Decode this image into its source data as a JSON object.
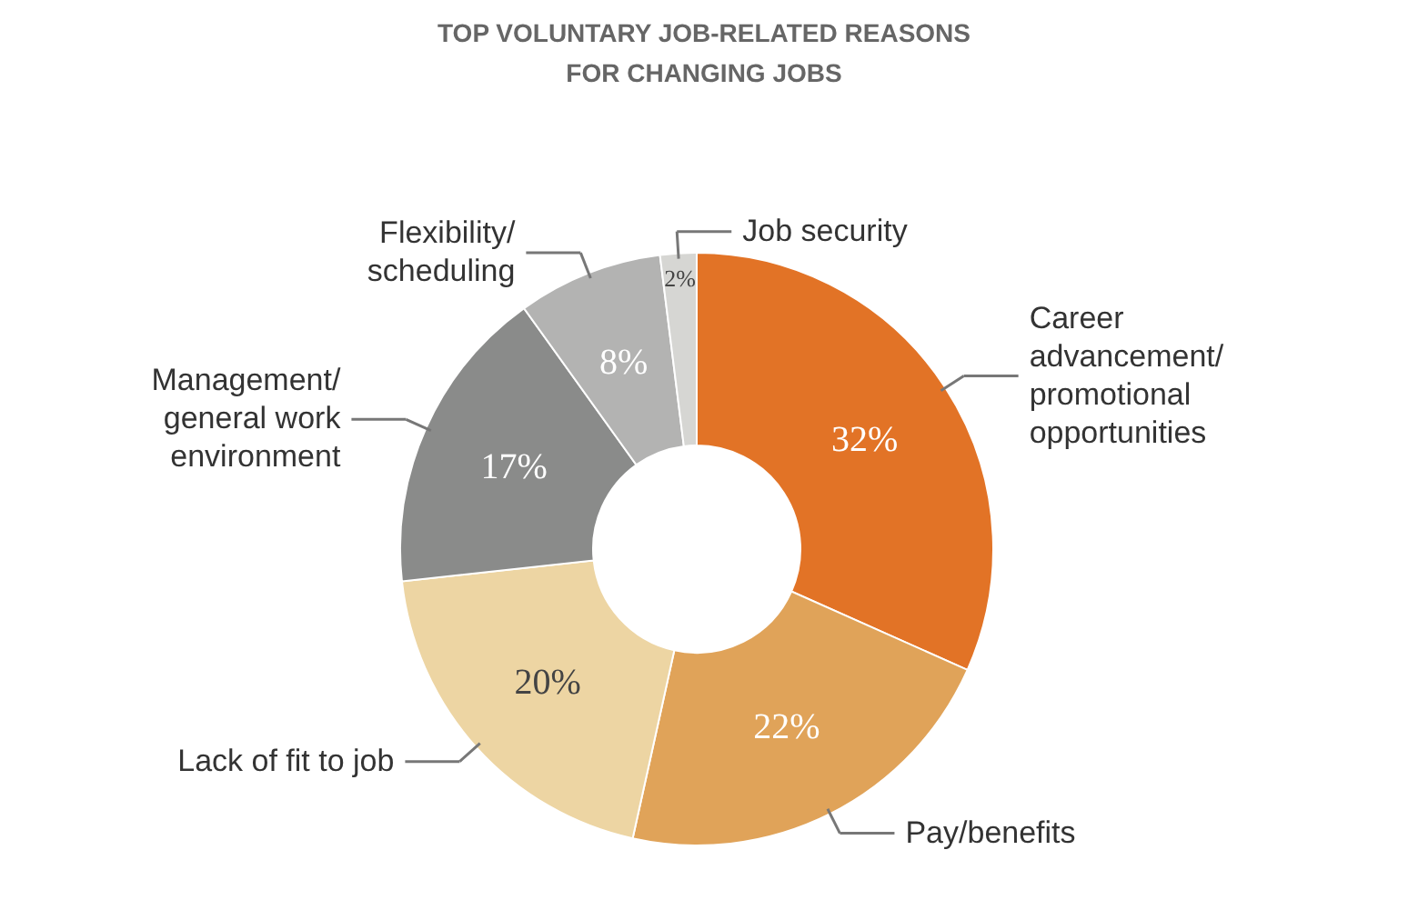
{
  "chart_data": {
    "type": "donut",
    "title": "TOP VOLUNTARY JOB-RELATED REASONS\nFOR CHANGING JOBS",
    "categories": [
      "Career\nadvancement/\npromotional\nopportunities",
      "Pay/benefits",
      "Lack of fit to job",
      "Management/\ngeneral work\nenvironment",
      "Flexibility/\nscheduling",
      "Job security"
    ],
    "values": [
      32,
      22,
      20,
      17,
      8,
      2
    ],
    "value_labels": [
      "32%",
      "22%",
      "20%",
      "17%",
      "8%",
      "2%"
    ],
    "colors": [
      "#e27326",
      "#e0a359",
      "#edd5a3",
      "#8a8b8a",
      "#b3b3b2",
      "#d6d6d3"
    ]
  }
}
